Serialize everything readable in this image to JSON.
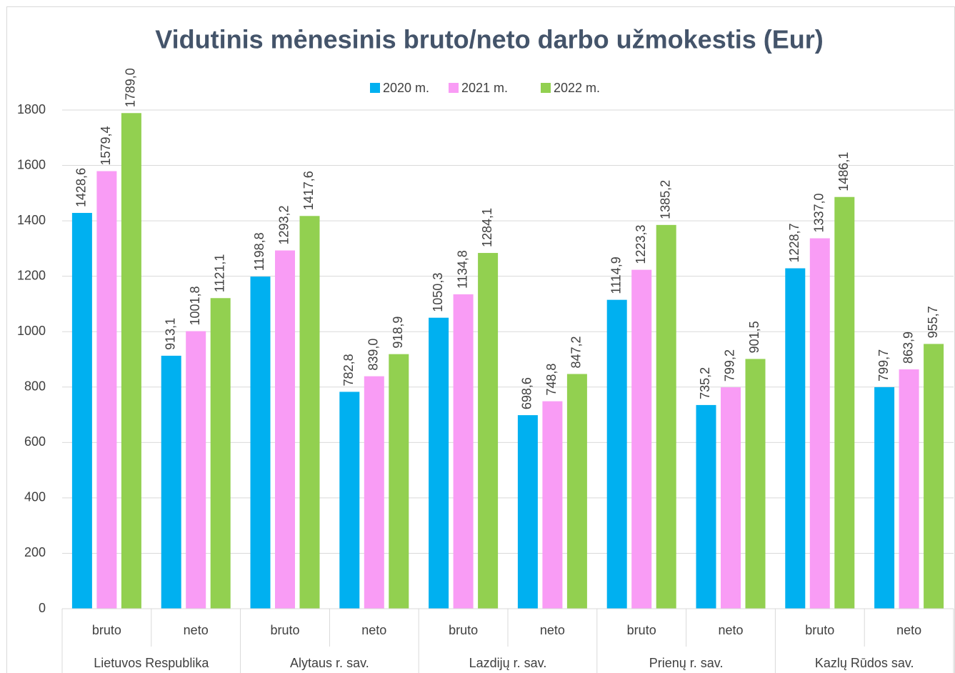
{
  "chart_data": {
    "type": "bar",
    "title": "Vidutinis mėnesinis bruto/neto darbo užmokestis (Eur)",
    "categories": [
      "bruto",
      "neto",
      "bruto",
      "neto",
      "bruto",
      "neto",
      "bruto",
      "neto",
      "bruto",
      "neto"
    ],
    "groups": [
      "Lietuvos Respublika",
      "Alytaus r. sav.",
      "Lazdijų r. sav.",
      "Prienų r. sav.",
      "Kazlų Rūdos sav."
    ],
    "series": [
      {
        "name": "2020 m.",
        "color": "#00b0f0",
        "values": [
          1428.6,
          913.1,
          1198.8,
          782.8,
          1050.3,
          698.6,
          1114.9,
          735.2,
          1228.7,
          799.7
        ],
        "value_labels": [
          "1428,6",
          "913,1",
          "1198,8",
          "782,8",
          "1050,3",
          "698,6",
          "1114,9",
          "735,2",
          "1228,7",
          "799,7"
        ]
      },
      {
        "name": "2021 m.",
        "color": "#f99cf5",
        "values": [
          1579.4,
          1001.8,
          1293.2,
          839.0,
          1134.8,
          748.8,
          1223.3,
          799.2,
          1337.0,
          863.9
        ],
        "value_labels": [
          "1579,4",
          "1001,8",
          "1293,2",
          "839,0",
          "1134,8",
          "748,8",
          "1223,3",
          "799,2",
          "1337,0",
          "863,9"
        ]
      },
      {
        "name": "2022 m.",
        "color": "#92d050",
        "values": [
          1789.0,
          1121.1,
          1417.6,
          918.9,
          1284.1,
          847.2,
          1385.2,
          901.5,
          1486.1,
          955.7
        ],
        "value_labels": [
          "1789,0",
          "1121,1",
          "1417,6",
          "918,9",
          "1284,1",
          "847,2",
          "1385,2",
          "901,5",
          "1486,1",
          "955,7"
        ]
      }
    ],
    "ylim": [
      0,
      1800
    ],
    "yticks": [
      0,
      200,
      400,
      600,
      800,
      1000,
      1200,
      1400,
      1600,
      1800
    ],
    "grid": true,
    "legend": "top"
  }
}
